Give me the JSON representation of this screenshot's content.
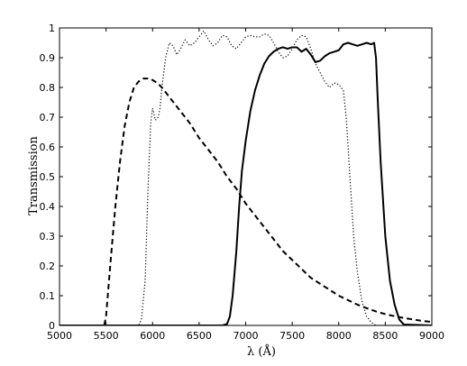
{
  "chart_data": {
    "type": "line",
    "title": "",
    "xlabel": "λ (Å)",
    "ylabel": "Transmission",
    "xlim": [
      5000,
      9000
    ],
    "ylim": [
      0,
      1
    ],
    "x_ticks": [
      5000,
      5500,
      6000,
      6500,
      7000,
      7500,
      8000,
      8500,
      9000
    ],
    "y_ticks": [
      0,
      0.1,
      0.2,
      0.3,
      0.4,
      0.5,
      0.6,
      0.7,
      0.8,
      0.9,
      1
    ],
    "x_tick_labels": [
      "5000",
      "5500",
      "6000",
      "6500",
      "7000",
      "7500",
      "8000",
      "8500",
      "9000"
    ],
    "y_tick_labels": [
      "0",
      "0.1",
      "0.2",
      "0.3",
      "0.4",
      "0.5",
      "0.6",
      "0.7",
      "0.8",
      "0.9",
      "1"
    ],
    "grid": false,
    "legend": false,
    "series": [
      {
        "style": "dashed",
        "color": "#000000",
        "x": [
          5000,
          5480,
          5500,
          5550,
          5600,
          5650,
          5700,
          5750,
          5800,
          5850,
          5900,
          5950,
          6000,
          6050,
          6100,
          6150,
          6200,
          6300,
          6400,
          6500,
          6600,
          6700,
          6800,
          6900,
          7000,
          7100,
          7200,
          7300,
          7400,
          7500,
          7600,
          7700,
          7800,
          7900,
          8000,
          8100,
          8200,
          8300,
          8400,
          8500,
          8600,
          8700,
          8800,
          8900,
          9000
        ],
        "y": [
          0,
          0,
          0.03,
          0.22,
          0.4,
          0.55,
          0.67,
          0.75,
          0.8,
          0.82,
          0.83,
          0.83,
          0.825,
          0.815,
          0.8,
          0.78,
          0.76,
          0.72,
          0.68,
          0.63,
          0.59,
          0.55,
          0.5,
          0.46,
          0.41,
          0.37,
          0.33,
          0.29,
          0.25,
          0.22,
          0.19,
          0.16,
          0.14,
          0.12,
          0.1,
          0.085,
          0.07,
          0.058,
          0.047,
          0.038,
          0.031,
          0.025,
          0.02,
          0.015,
          0.012
        ]
      },
      {
        "style": "dotted",
        "color": "#000000",
        "x": [
          5000,
          5850,
          5880,
          5920,
          5950,
          5980,
          6000,
          6030,
          6060,
          6080,
          6100,
          6140,
          6180,
          6220,
          6260,
          6300,
          6350,
          6400,
          6450,
          6500,
          6550,
          6600,
          6650,
          6700,
          6750,
          6800,
          6850,
          6900,
          6950,
          7000,
          7050,
          7100,
          7150,
          7200,
          7250,
          7300,
          7350,
          7400,
          7450,
          7500,
          7550,
          7600,
          7650,
          7700,
          7750,
          7800,
          7850,
          7900,
          7950,
          8000,
          8050,
          8080,
          8100,
          8130,
          8160,
          8200,
          8250,
          8300,
          8350,
          8400,
          9000
        ],
        "y": [
          0,
          0,
          0.02,
          0.15,
          0.45,
          0.68,
          0.73,
          0.69,
          0.7,
          0.73,
          0.8,
          0.9,
          0.95,
          0.94,
          0.91,
          0.93,
          0.96,
          0.94,
          0.95,
          0.97,
          0.99,
          0.96,
          0.94,
          0.95,
          0.975,
          0.97,
          0.94,
          0.93,
          0.95,
          0.97,
          0.975,
          0.97,
          0.97,
          0.98,
          0.975,
          0.95,
          0.92,
          0.9,
          0.905,
          0.93,
          0.96,
          0.975,
          0.97,
          0.93,
          0.88,
          0.85,
          0.82,
          0.8,
          0.815,
          0.81,
          0.79,
          0.7,
          0.6,
          0.45,
          0.3,
          0.18,
          0.08,
          0.03,
          0.01,
          0,
          0
        ]
      },
      {
        "style": "solid",
        "color": "#000000",
        "x": [
          5000,
          6750,
          6800,
          6830,
          6860,
          6900,
          6930,
          6960,
          7000,
          7050,
          7100,
          7150,
          7200,
          7250,
          7300,
          7350,
          7400,
          7450,
          7500,
          7550,
          7600,
          7650,
          7700,
          7750,
          7800,
          7850,
          7900,
          7950,
          8000,
          8050,
          8100,
          8150,
          8200,
          8250,
          8300,
          8350,
          8380,
          8400,
          8420,
          8450,
          8480,
          8500,
          8550,
          8600,
          8650,
          8700,
          9000
        ],
        "y": [
          0,
          0,
          0.005,
          0.03,
          0.1,
          0.25,
          0.4,
          0.52,
          0.62,
          0.72,
          0.79,
          0.84,
          0.88,
          0.905,
          0.92,
          0.93,
          0.935,
          0.93,
          0.935,
          0.935,
          0.92,
          0.93,
          0.91,
          0.885,
          0.89,
          0.905,
          0.915,
          0.92,
          0.925,
          0.945,
          0.95,
          0.945,
          0.94,
          0.945,
          0.95,
          0.945,
          0.95,
          0.9,
          0.75,
          0.55,
          0.4,
          0.3,
          0.15,
          0.07,
          0.02,
          0.003,
          0
        ]
      }
    ]
  }
}
